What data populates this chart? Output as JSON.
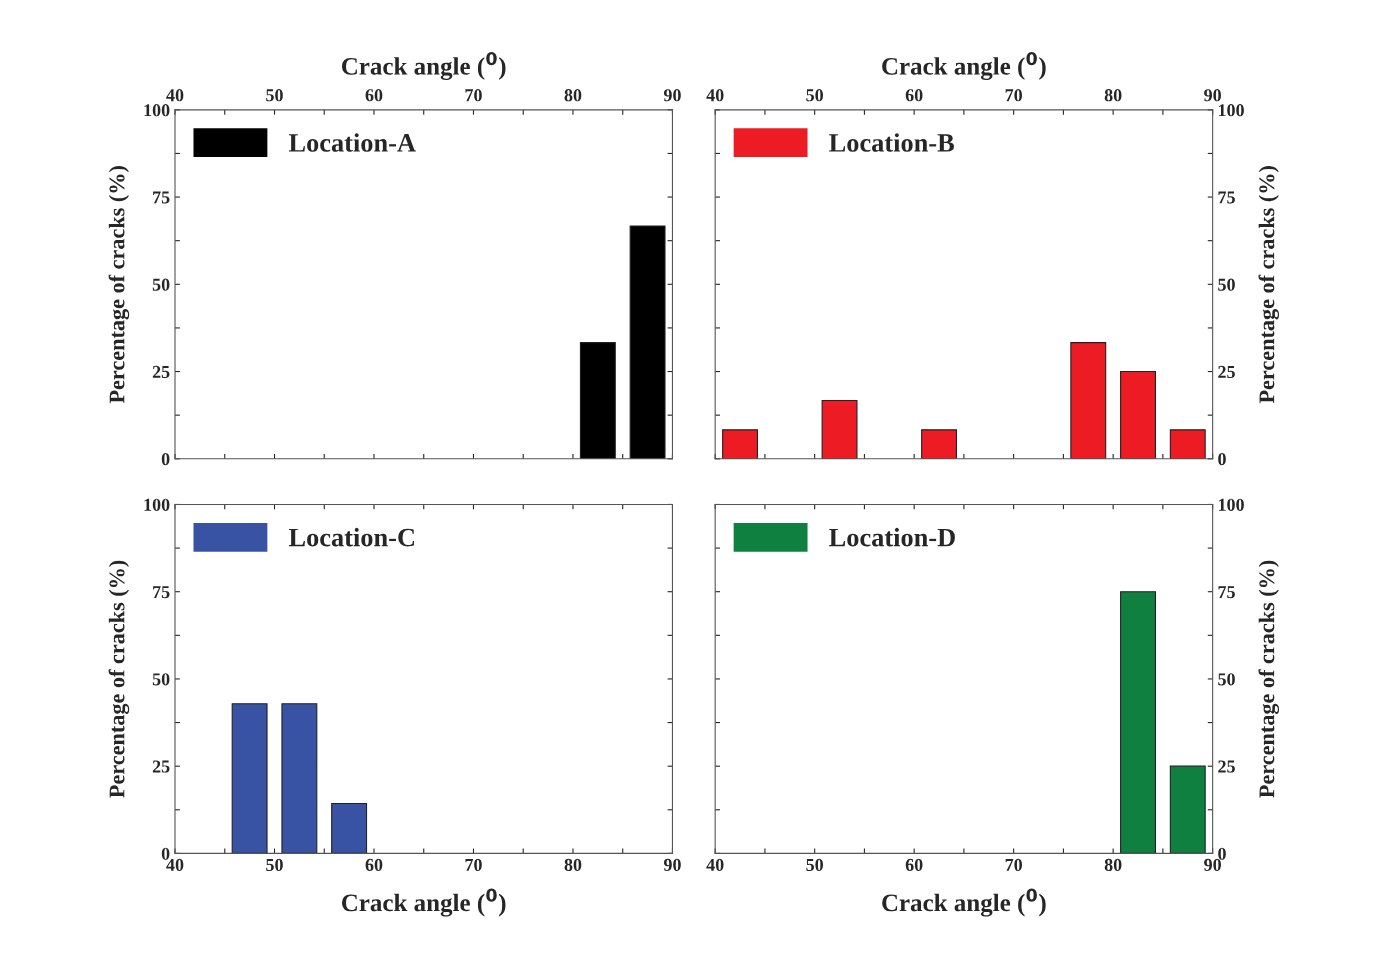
{
  "chart_data": [
    {
      "type": "bar",
      "x": [
        82.5,
        87.5
      ],
      "series": [
        {
          "name": "Location-A",
          "color": "#000000",
          "values": [
            33.3,
            66.7
          ]
        }
      ],
      "xlim": [
        40,
        90
      ],
      "xticks": [
        40,
        {
          "value": 45,
          "label": null
        },
        50,
        {
          "value": 55,
          "label": null
        },
        60,
        {
          "value": 65,
          "label": null
        },
        70,
        {
          "value": 75,
          "label": null
        },
        80,
        {
          "value": 85,
          "label": null
        },
        90
      ],
      "xlabel": "Crack angle ($^{0}$)",
      "ylim": [
        0,
        100
      ],
      "yticks": [
        0,
        {
          "value": 12.5,
          "label": null
        },
        25,
        {
          "value": 37.5,
          "label": null
        },
        50,
        {
          "value": 62.5,
          "label": null
        },
        75,
        {
          "value": 87.5,
          "label": null
        },
        100
      ],
      "ylabel": "Percentage of cracks (%)",
      "legend": "top left"
    },
    {
      "type": "bar",
      "x": [
        42.5,
        52.5,
        62.5,
        77.5,
        82.5,
        87.5
      ],
      "series": [
        {
          "name": "Location-B",
          "color": "#ed1c24",
          "values": [
            8.3,
            16.7,
            8.3,
            33.3,
            25,
            8.3
          ]
        }
      ],
      "xlim": [
        40,
        90
      ],
      "xticks": [
        40,
        {
          "value": 45,
          "label": null
        },
        50,
        {
          "value": 55,
          "label": null
        },
        60,
        {
          "value": 65,
          "label": null
        },
        70,
        {
          "value": 75,
          "label": null
        },
        80,
        {
          "value": 85,
          "label": null
        },
        90
      ],
      "xlabel": "Crack angle ($^{0}$)",
      "ylim": [
        0,
        100
      ],
      "yticks": [
        0,
        {
          "value": 12.5,
          "label": null
        },
        25,
        {
          "value": 37.5,
          "label": null
        },
        50,
        {
          "value": 62.5,
          "label": null
        },
        75,
        {
          "value": 87.5,
          "label": null
        },
        100
      ],
      "ylabel": "Percentage of cracks (%)",
      "legend": "top left"
    },
    {
      "type": "bar",
      "x": [
        47.5,
        52.5,
        57.5
      ],
      "series": [
        {
          "name": "Location-C",
          "color": "#3953a4",
          "values": [
            42.9,
            42.9,
            14.3
          ]
        }
      ],
      "xlim": [
        40,
        90
      ],
      "xticks": [
        40,
        {
          "value": 45,
          "label": null
        },
        50,
        {
          "value": 55,
          "label": null
        },
        60,
        {
          "value": 65,
          "label": null
        },
        70,
        {
          "value": 75,
          "label": null
        },
        80,
        {
          "value": 85,
          "label": null
        },
        90
      ],
      "xlabel": "Crack angle ($^{0}$)",
      "ylim": [
        0,
        100
      ],
      "yticks": [
        0,
        {
          "value": 12.5,
          "label": null
        },
        25,
        {
          "value": 37.5,
          "label": null
        },
        50,
        {
          "value": 62.5,
          "label": null
        },
        75,
        {
          "value": 87.5,
          "label": null
        },
        100
      ],
      "ylabel": "Percentage of cracks (%)",
      "legend": "top left"
    },
    {
      "type": "bar",
      "x": [
        82.5,
        87.5
      ],
      "series": [
        {
          "name": "Location-D",
          "color": "#0f8040",
          "values": [
            75,
            25
          ]
        }
      ],
      "xlim": [
        40,
        90
      ],
      "xticks": [
        40,
        {
          "value": 45,
          "label": null
        },
        50,
        {
          "value": 55,
          "label": null
        },
        60,
        {
          "value": 65,
          "label": null
        },
        70,
        {
          "value": 75,
          "label": null
        },
        80,
        {
          "value": 85,
          "label": null
        },
        90
      ],
      "xlabel": "Crack angle ($^{0}$)",
      "ylim": [
        0,
        100
      ],
      "yticks": [
        0,
        {
          "value": 12.5,
          "label": null
        },
        25,
        {
          "value": 37.5,
          "label": null
        },
        50,
        {
          "value": 62.5,
          "label": null
        },
        75,
        {
          "value": 87.5,
          "label": null
        },
        100
      ],
      "ylabel": "Percentage of cracks (%)",
      "legend": "top left"
    }
  ]
}
